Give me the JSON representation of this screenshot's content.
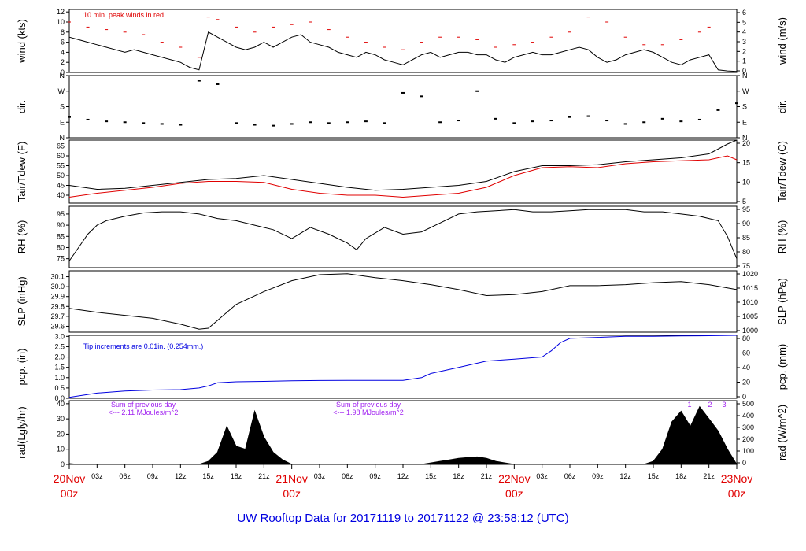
{
  "title": "UW Rooftop Data for 20171119  to  20171122 @ 23:58:12  (UTC)",
  "colors": {
    "axis": "#000000",
    "tdew": "#e00000",
    "peak": "#e00000",
    "pcp": "#0000e0",
    "rad_note": "#a020f0",
    "day_label": "#e00000",
    "title": "#0000e0"
  },
  "x_axis": {
    "range_hours": [
      0,
      72
    ],
    "hour_labels": [
      "03z",
      "06z",
      "09z",
      "12z",
      "15z",
      "18z",
      "21z",
      "03z",
      "06z",
      "09z",
      "12z",
      "15z",
      "18z",
      "21z",
      "03z",
      "06z",
      "09z",
      "12z",
      "15z",
      "18z",
      "21z"
    ],
    "hour_label_positions": [
      3,
      6,
      9,
      12,
      15,
      18,
      21,
      27,
      30,
      33,
      36,
      39,
      42,
      45,
      51,
      54,
      57,
      60,
      63,
      66,
      69
    ],
    "day_labels": [
      {
        "hour": 0,
        "day": "20Nov",
        "time": "00z"
      },
      {
        "hour": 24,
        "day": "21Nov",
        "time": "00z"
      },
      {
        "hour": 48,
        "day": "22Nov",
        "time": "00z"
      },
      {
        "hour": 72,
        "day": "23Nov",
        "time": "00z"
      }
    ]
  },
  "chart_data": [
    {
      "id": "wind",
      "type": "line",
      "ylabel_left": "wind (kts)",
      "ylabel_right": "wind (m/s)",
      "ylim": [
        0,
        12.5
      ],
      "left_ticks": [
        "0",
        "2",
        "4",
        "6",
        "8",
        "10",
        "12"
      ],
      "right_ticks": [
        "0",
        "1",
        "2",
        "3",
        "4",
        "5",
        "6"
      ],
      "annotation": "10 min. peak winds in red",
      "series": [
        {
          "name": "wind",
          "x": [
            0,
            1,
            2,
            3,
            4,
            5,
            6,
            7,
            8,
            9,
            10,
            11,
            12,
            13,
            14,
            15,
            16,
            17,
            18,
            19,
            20,
            21,
            22,
            23,
            24,
            25,
            26,
            27,
            28,
            29,
            30,
            31,
            32,
            33,
            34,
            35,
            36,
            37,
            38,
            39,
            40,
            41,
            42,
            43,
            44,
            45,
            46,
            47,
            48,
            49,
            50,
            51,
            52,
            53,
            54,
            55,
            56,
            57,
            58,
            59,
            60,
            61,
            62,
            63,
            64,
            65,
            66,
            67,
            68,
            69,
            70,
            71,
            72
          ],
          "values": [
            7,
            6.5,
            6,
            5.5,
            5,
            4.5,
            4,
            4.5,
            4,
            3.5,
            3,
            2.5,
            2,
            1,
            0.5,
            8,
            7,
            6,
            5,
            4.5,
            5,
            6,
            5,
            6,
            7,
            7.5,
            6,
            5.5,
            5,
            4,
            3.5,
            3,
            4,
            3.5,
            2.5,
            2,
            1.5,
            2.5,
            3.5,
            4,
            3,
            3.5,
            4,
            4,
            3.5,
            3.5,
            2.5,
            2,
            3,
            3.5,
            4,
            3.5,
            3.5,
            4,
            4.5,
            5,
            4.5,
            3,
            2,
            2.5,
            3.5,
            4,
            4.5,
            4,
            3,
            2,
            1.5,
            2.5,
            3,
            3.5,
            0.5,
            0.3,
            0.2
          ]
        },
        {
          "name": "peak",
          "x": [
            0,
            2,
            4,
            6,
            8,
            10,
            12,
            14,
            15,
            16,
            18,
            20,
            22,
            24,
            26,
            28,
            30,
            32,
            34,
            36,
            38,
            40,
            42,
            44,
            46,
            48,
            50,
            52,
            54,
            56,
            58,
            60,
            62,
            64,
            66,
            68,
            69
          ],
          "values": [
            10,
            9,
            8.5,
            8,
            7.5,
            6,
            5,
            3,
            11,
            10.5,
            9,
            8,
            9,
            9.5,
            10,
            8.5,
            7,
            6,
            5,
            4.5,
            6,
            7,
            7,
            6.5,
            5,
            5.5,
            6,
            7,
            8,
            11,
            10,
            7,
            5.5,
            5.5,
            6.5,
            8,
            9
          ]
        }
      ]
    },
    {
      "id": "dir",
      "type": "scatter",
      "ylabel_left": "dir.",
      "ylabel_right": "dir.",
      "ylim": [
        0,
        360
      ],
      "left_ticks": [
        "N",
        "E",
        "S",
        "W",
        "N"
      ],
      "right_ticks": [
        "N",
        "E",
        "S",
        "W",
        "N"
      ],
      "x": [
        0,
        2,
        4,
        6,
        8,
        10,
        12,
        14,
        16,
        18,
        20,
        22,
        24,
        26,
        28,
        30,
        32,
        34,
        36,
        38,
        40,
        42,
        44,
        46,
        48,
        50,
        52,
        54,
        56,
        58,
        60,
        62,
        64,
        66,
        68,
        70,
        72
      ],
      "values": [
        120,
        105,
        95,
        90,
        85,
        80,
        75,
        330,
        310,
        85,
        75,
        70,
        80,
        90,
        85,
        90,
        95,
        85,
        260,
        240,
        90,
        100,
        270,
        110,
        85,
        95,
        100,
        120,
        125,
        100,
        80,
        90,
        110,
        95,
        105,
        160,
        200
      ]
    },
    {
      "id": "temp",
      "type": "line",
      "ylabel_left": "Tair/Tdew (F)",
      "ylabel_right": "Tair/Tdew (C)",
      "ylim": [
        36,
        68
      ],
      "left_ticks": [
        "40",
        "45",
        "50",
        "55",
        "60",
        "65"
      ],
      "right_ticks": [
        "5",
        "10",
        "15",
        "20"
      ],
      "series": [
        {
          "name": "Tair",
          "x": [
            0,
            3,
            6,
            9,
            12,
            15,
            18,
            21,
            24,
            27,
            30,
            33,
            36,
            39,
            42,
            45,
            48,
            51,
            54,
            57,
            60,
            63,
            66,
            69,
            71,
            72
          ],
          "values": [
            45,
            43,
            43.5,
            45,
            46.5,
            48,
            48.5,
            50,
            48,
            46,
            44,
            42.5,
            43,
            44,
            45,
            47,
            52,
            55,
            55,
            55.5,
            57,
            58,
            59,
            61,
            66,
            68
          ]
        },
        {
          "name": "Tdew",
          "x": [
            0,
            3,
            6,
            9,
            12,
            15,
            18,
            21,
            24,
            27,
            30,
            33,
            36,
            39,
            42,
            45,
            48,
            51,
            54,
            57,
            60,
            63,
            66,
            69,
            71,
            72
          ],
          "values": [
            39,
            41,
            42.5,
            44,
            46,
            47,
            47,
            46.5,
            43,
            41,
            40,
            40,
            39,
            40,
            41,
            44,
            50,
            54,
            54.5,
            54,
            56,
            57,
            57.5,
            58,
            60,
            58
          ]
        }
      ]
    },
    {
      "id": "rh",
      "type": "line",
      "ylabel_left": "RH (%)",
      "ylabel_right": "RH (%)",
      "ylim": [
        71,
        98.5
      ],
      "left_ticks": [
        "75",
        "80",
        "85",
        "90",
        "95"
      ],
      "right_ticks": [
        "75",
        "80",
        "85",
        "90",
        "95"
      ],
      "x": [
        0,
        1,
        2,
        3,
        4,
        6,
        8,
        10,
        12,
        14,
        16,
        18,
        20,
        22,
        24,
        26,
        28,
        30,
        31,
        32,
        34,
        36,
        38,
        40,
        42,
        44,
        46,
        48,
        50,
        52,
        54,
        56,
        58,
        60,
        62,
        64,
        66,
        68,
        70,
        71,
        72
      ],
      "values": [
        74,
        80,
        86,
        90,
        92,
        94,
        95.5,
        96,
        96,
        95,
        93,
        92,
        90,
        88,
        84,
        89,
        86,
        82,
        79,
        84,
        89,
        86,
        87,
        91,
        95,
        96,
        96.5,
        97,
        96,
        96,
        96.5,
        97,
        97,
        97,
        96,
        96,
        95,
        94,
        92,
        85,
        75
      ]
    },
    {
      "id": "slp",
      "type": "line",
      "ylabel_left": "SLP (inHg)",
      "ylabel_right": "SLP (hPa)",
      "ylim": [
        29.54,
        30.16
      ],
      "left_ticks": [
        "29.6",
        "29.7",
        "29.8",
        "29.9",
        "30.0",
        "30.1"
      ],
      "right_ticks": [
        "1000",
        "1005",
        "1010",
        "1015",
        "1020"
      ],
      "x": [
        0,
        3,
        6,
        9,
        12,
        14,
        15,
        18,
        21,
        24,
        27,
        30,
        33,
        36,
        39,
        42,
        45,
        48,
        51,
        54,
        57,
        60,
        63,
        66,
        69,
        72
      ],
      "values": [
        29.78,
        29.74,
        29.71,
        29.68,
        29.62,
        29.57,
        29.58,
        29.82,
        29.95,
        30.06,
        30.12,
        30.13,
        30.09,
        30.06,
        30.02,
        29.97,
        29.91,
        29.92,
        29.95,
        30.01,
        30.01,
        30.02,
        30.04,
        30.05,
        30.02,
        29.97
      ]
    },
    {
      "id": "pcp",
      "type": "line",
      "ylabel_left": "pcp. (in)",
      "ylabel_right": "pcp. (mm)",
      "ylim": [
        0,
        3.05
      ],
      "left_ticks": [
        "0.0",
        "0.5",
        "1.0",
        "1.5",
        "2.0",
        "2.5",
        "3.0"
      ],
      "right_ticks": [
        "0",
        "20",
        "40",
        "60",
        "80"
      ],
      "annotation": "Tip increments are 0.01in. (0.254mm.)",
      "x": [
        0,
        3,
        6,
        9,
        12,
        14,
        15,
        16,
        18,
        21,
        24,
        27,
        30,
        33,
        36,
        38,
        39,
        42,
        45,
        48,
        51,
        52,
        53,
        54,
        57,
        60,
        63,
        66,
        69,
        72
      ],
      "values": [
        0.05,
        0.25,
        0.35,
        0.4,
        0.42,
        0.5,
        0.6,
        0.75,
        0.8,
        0.82,
        0.85,
        0.86,
        0.87,
        0.87,
        0.87,
        1.0,
        1.2,
        1.5,
        1.8,
        1.9,
        2.0,
        2.3,
        2.7,
        2.9,
        2.95,
        3.0,
        3.0,
        3.02,
        3.03,
        3.05
      ]
    },
    {
      "id": "rad",
      "type": "area",
      "ylabel_left": "rad(Lgly/hr)",
      "ylabel_right": "rad (W/m^2)",
      "ylim": [
        0,
        42
      ],
      "left_ticks": [
        "0",
        "10",
        "20",
        "30",
        "40"
      ],
      "right_ticks": [
        "0",
        "100",
        "200",
        "300",
        "400",
        "500"
      ],
      "notes": [
        {
          "line1": "Sum of previous day",
          "line2": "<--- 2.11 MJoules/m^2"
        },
        {
          "line1": "Sum of previous day",
          "line2": "<--- 1.98 MJoules/m^2"
        }
      ],
      "marker_labels": [
        "1",
        "2",
        "3"
      ],
      "x": [
        0,
        1,
        14,
        15,
        16,
        17,
        18,
        19,
        20,
        21,
        22,
        23,
        24,
        38,
        39,
        40,
        41,
        42,
        43,
        44,
        45,
        46,
        47,
        48,
        62,
        63,
        64,
        65,
        66,
        67,
        68,
        69,
        70,
        71,
        72
      ],
      "values": [
        0.5,
        0,
        0,
        2,
        8,
        25,
        12,
        10,
        35,
        18,
        8,
        3,
        0,
        0,
        1,
        2,
        3,
        4,
        4.5,
        5,
        4,
        2,
        1,
        0,
        0,
        2,
        10,
        28,
        35,
        25,
        38,
        30,
        22,
        10,
        0
      ]
    }
  ]
}
